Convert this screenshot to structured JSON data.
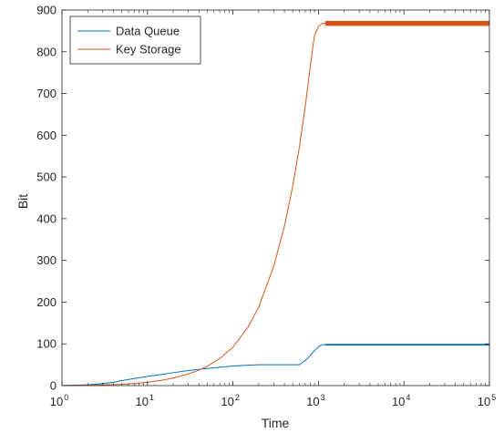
{
  "chart_data": {
    "type": "line",
    "xlabel": "Time",
    "ylabel": "Bit",
    "xscale": "log",
    "xlim": [
      1,
      100000
    ],
    "ylim": [
      0,
      900
    ],
    "grid": false,
    "legend_position": "top-left",
    "x_ticks": [
      1,
      10,
      100,
      1000,
      10000,
      100000
    ],
    "x_tick_labels": [
      {
        "base": "10",
        "exp": "0"
      },
      {
        "base": "10",
        "exp": "1"
      },
      {
        "base": "10",
        "exp": "2"
      },
      {
        "base": "10",
        "exp": "3"
      },
      {
        "base": "10",
        "exp": "4"
      },
      {
        "base": "10",
        "exp": "5"
      }
    ],
    "y_ticks": [
      0,
      100,
      200,
      300,
      400,
      500,
      600,
      700,
      800,
      900
    ],
    "series": [
      {
        "name": "Data Queue",
        "color": "#0072BD",
        "x": [
          1,
          2,
          3,
          4,
          5,
          7,
          10,
          15,
          20,
          30,
          50,
          80,
          100,
          150,
          200,
          300,
          400,
          500,
          600,
          700,
          800,
          900,
          1000,
          1100,
          1200,
          2000,
          5000,
          10000,
          20000,
          50000,
          100000
        ],
        "y": [
          0,
          2,
          5,
          8,
          12,
          17,
          22,
          27,
          31,
          36,
          41,
          45,
          47,
          49,
          50,
          50,
          50,
          50,
          50,
          60,
          72,
          84,
          93,
          98,
          98,
          98,
          98,
          98,
          98,
          98,
          98
        ],
        "steady_band": [
          96,
          100
        ]
      },
      {
        "name": "Key Storage",
        "color": "#D95319",
        "x": [
          1,
          2,
          3,
          5,
          7,
          10,
          15,
          20,
          30,
          40,
          50,
          70,
          100,
          150,
          200,
          300,
          400,
          500,
          600,
          700,
          800,
          900,
          1000,
          1100,
          1200,
          2000,
          5000,
          10000,
          20000,
          50000,
          100000
        ],
        "y": [
          0,
          1,
          2,
          3,
          5,
          8,
          13,
          18,
          28,
          37,
          46,
          65,
          92,
          140,
          188,
          286,
          382,
          478,
          573,
          668,
          762,
          840,
          860,
          868,
          868,
          868,
          868,
          868,
          868,
          868,
          868
        ],
        "steady_band": [
          862,
          874
        ]
      }
    ]
  }
}
